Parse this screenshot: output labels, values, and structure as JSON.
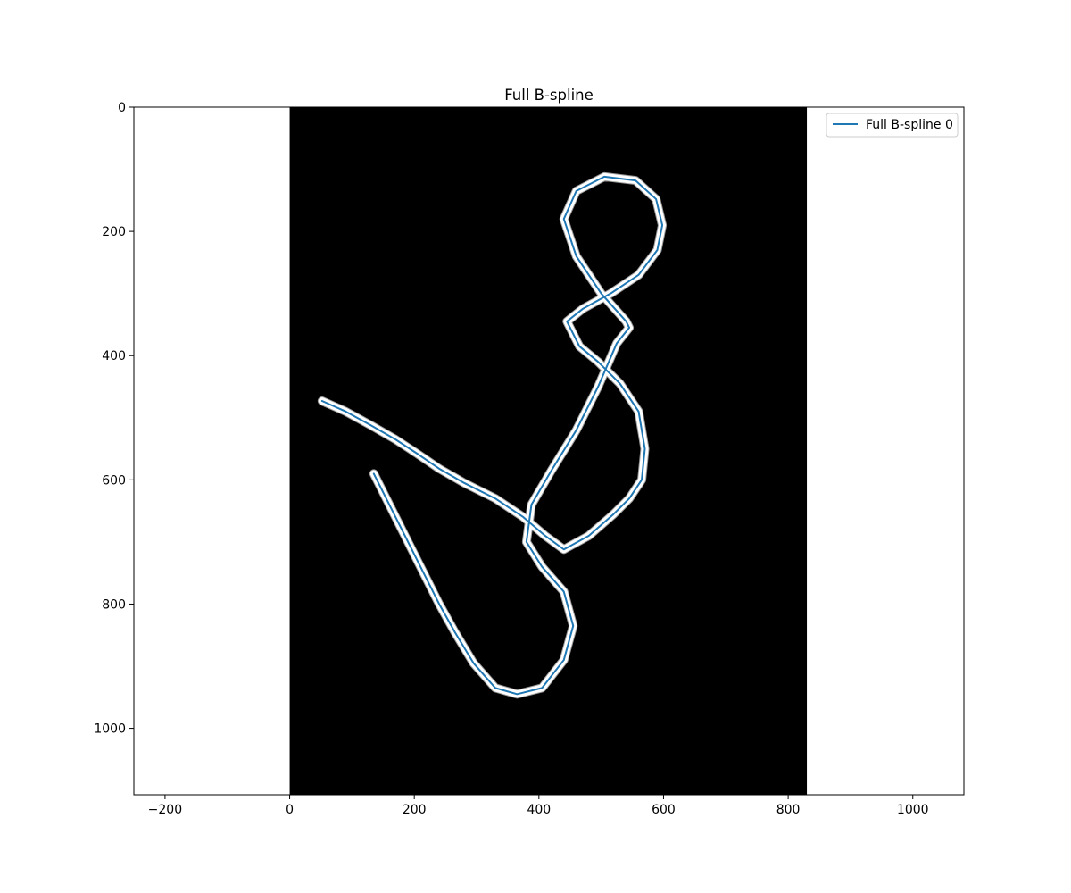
{
  "chart_data": {
    "type": "line",
    "title": "Full B-spline",
    "xlabel": "",
    "ylabel": "",
    "xlim": [
      -250,
      1082
    ],
    "ylim": [
      1107,
      0
    ],
    "y_inverted": true,
    "grid": false,
    "legend_placement": "top-right",
    "x_ticks": [
      -200,
      0,
      200,
      400,
      600,
      800,
      1000
    ],
    "x_tick_labels": [
      "−200",
      "0",
      "200",
      "400",
      "600",
      "800",
      "1000"
    ],
    "y_ticks": [
      0,
      200,
      400,
      600,
      800,
      1000
    ],
    "y_tick_labels": [
      "0",
      "200",
      "400",
      "600",
      "800",
      "1000"
    ],
    "background_image": {
      "description": "binary stroke image",
      "x_extent": [
        0,
        830
      ],
      "y_extent": [
        0,
        1107
      ],
      "background_color": "#000000",
      "stroke_color": "#ffffff"
    },
    "series": [
      {
        "name": "Full B-spline 0",
        "color": "#1f77b4",
        "x": [
          52,
          90,
          130,
          170,
          205,
          240,
          280,
          330,
          375,
          410,
          440,
          480,
          520,
          545,
          565,
          570,
          560,
          530,
          495,
          465,
          445,
          470,
          515,
          560,
          590,
          598,
          588,
          555,
          505,
          460,
          440,
          460,
          500,
          540,
          545,
          525,
          495,
          460,
          420,
          388,
          380,
          405,
          440,
          455,
          440,
          405,
          365,
          330,
          295,
          265,
          240,
          210,
          185,
          160,
          135
        ],
        "y": [
          473,
          490,
          512,
          535,
          558,
          582,
          605,
          630,
          660,
          690,
          712,
          690,
          655,
          630,
          600,
          550,
          490,
          445,
          410,
          385,
          345,
          325,
          300,
          270,
          230,
          190,
          148,
          118,
          112,
          135,
          180,
          240,
          300,
          345,
          355,
          380,
          450,
          520,
          585,
          640,
          700,
          740,
          780,
          835,
          890,
          935,
          945,
          935,
          895,
          845,
          800,
          740,
          690,
          640,
          590
        ]
      }
    ]
  }
}
